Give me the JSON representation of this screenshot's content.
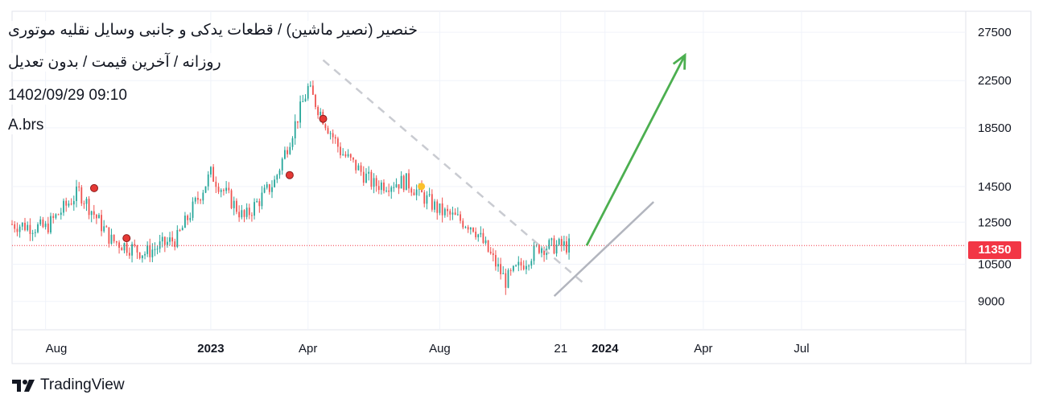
{
  "header": {
    "title": "خنصیر (نصیر ماشین) / قطعات یدکی و جانبی وسایل نقلیه موتوری",
    "subtitle": "روزانه / آخرین قیمت / بدون تعدیل",
    "datetime": "1402/09/29 09:10",
    "author": "A.brs"
  },
  "brand": {
    "name": "TradingView"
  },
  "colors": {
    "up_candle": "#26a69a",
    "down_candle": "#ef5350",
    "projection_arrow": "#4caf50",
    "support_line": "#b2b5be",
    "resistance_line": "#c9cbd1",
    "price_line": "#f23645",
    "marker_red": "#e53935",
    "marker_yellow": "#fbc02d"
  },
  "chart_data": {
    "type": "line",
    "style": "candlestick",
    "title": "خنصیر (نصیر ماشین) / قطعات یدکی و جانبی وسایل نقلیه موتوری",
    "y_axis": {
      "scale": "log",
      "range": [
        8000,
        30000
      ],
      "ticks": [
        27500,
        22500,
        18500,
        14500,
        12500,
        10500,
        9000
      ]
    },
    "x_axis": {
      "tick_labels": [
        "Aug",
        "2023",
        "Apr",
        "Aug",
        "21",
        "2024",
        "Apr",
        "Jul"
      ]
    },
    "last_price": 11350,
    "price_label": "11350",
    "grid": true,
    "legend": "none",
    "series": [
      {
        "x": [
          "2022-07",
          "2022-08",
          "2022-09",
          "2022-10",
          "2022-11",
          "2022-12",
          "2023-01",
          "2023-02",
          "2023-03",
          "2023-04",
          "2023-05",
          "2023-06",
          "2023-07",
          "2023-08",
          "2023-09",
          "2023-10",
          "2023-11",
          "2023-12"
        ],
        "values": [
          12400,
          12200,
          14200,
          11600,
          11000,
          11700,
          15300,
          12700,
          14800,
          21800,
          16800,
          14600,
          14800,
          13100,
          12300,
          9800,
          11300,
          11350
        ]
      }
    ],
    "markers": [
      {
        "x": "2022-09",
        "y": 14400,
        "color": "red"
      },
      {
        "x": "2022-10",
        "y": 11700,
        "color": "red"
      },
      {
        "x": "2023-03",
        "y": 15200,
        "color": "red"
      },
      {
        "x": "2023-04",
        "y": 19200,
        "color": "red"
      },
      {
        "x": "2023-07",
        "y": 14500,
        "color": "yellow"
      }
    ],
    "annotations": [
      {
        "type": "trendline",
        "style": "dashed",
        "from": [
          "2023-04",
          24500
        ],
        "to": [
          "2023-12",
          9600
        ]
      },
      {
        "type": "trendline",
        "style": "solid",
        "from": [
          "2023-11",
          9200
        ],
        "to": [
          "2024-02",
          13600
        ]
      },
      {
        "type": "arrow",
        "from": [
          "2023-12",
          11350
        ],
        "to": [
          "2024-03",
          25000
        ]
      }
    ]
  }
}
